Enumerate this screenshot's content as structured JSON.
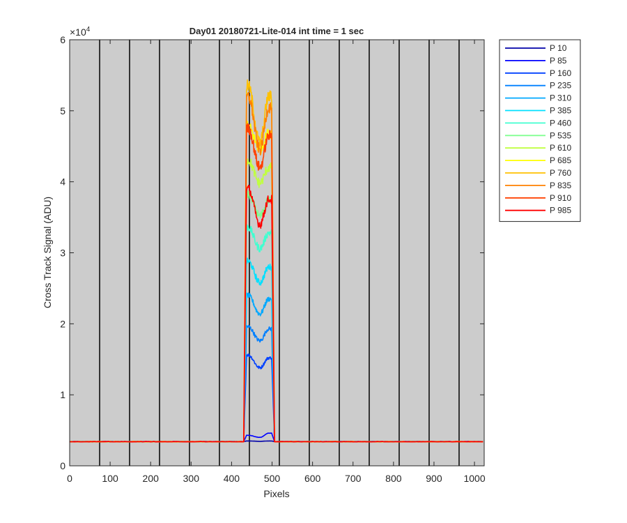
{
  "chart_data": {
    "type": "line",
    "title": "Day01 20180721-Lite-014 int time = 1 sec",
    "xlabel": "Pixels",
    "ylabel": "Cross Track Signal (ADU)",
    "xlim": [
      0,
      1024
    ],
    "ylim": [
      0,
      60000
    ],
    "y_exponent_label": "×10",
    "y_exponent_power": "4",
    "xticks": [
      0,
      100,
      200,
      300,
      400,
      500,
      600,
      700,
      800,
      900,
      1000
    ],
    "xtick_labels": [
      "0",
      "100",
      "200",
      "300",
      "400",
      "500",
      "600",
      "700",
      "800",
      "900",
      "1000"
    ],
    "yticks": [
      0,
      10000,
      20000,
      30000,
      40000,
      50000,
      60000
    ],
    "ytick_labels": [
      "0",
      "1",
      "2",
      "3",
      "4",
      "5",
      "6"
    ],
    "grid": false,
    "background_color": "#cccccc",
    "vertical_lines_x": [
      74,
      148,
      222,
      296,
      370,
      444,
      518,
      592,
      666,
      740,
      814,
      888,
      962
    ],
    "vertical_line_color": "#000000",
    "baseline": 3400,
    "legend_placement": "outside-right",
    "series": [
      {
        "name": "P 10",
        "color": "#0000a8",
        "left_peak": 3500,
        "right_peak": 3500,
        "dip": 3450
      },
      {
        "name": "P 85",
        "color": "#0000ff",
        "left_peak": 4300,
        "right_peak": 4600,
        "dip": 4000
      },
      {
        "name": "P 160",
        "color": "#0040ff",
        "left_peak": 15600,
        "right_peak": 15200,
        "dip": 13800
      },
      {
        "name": "P 235",
        "color": "#0080ff",
        "left_peak": 19600,
        "right_peak": 19300,
        "dip": 17600
      },
      {
        "name": "P 310",
        "color": "#00a8ff",
        "left_peak": 24000,
        "right_peak": 23500,
        "dip": 21400
      },
      {
        "name": "P 385",
        "color": "#00e0ff",
        "left_peak": 28800,
        "right_peak": 28000,
        "dip": 25800
      },
      {
        "name": "P 460",
        "color": "#40ffd0",
        "left_peak": 33600,
        "right_peak": 32800,
        "dip": 30600
      },
      {
        "name": "P 535",
        "color": "#80ff90",
        "left_peak": 38300,
        "right_peak": 37500,
        "dip": 35200
      },
      {
        "name": "P 610",
        "color": "#c0ff40",
        "left_peak": 43000,
        "right_peak": 42000,
        "dip": 39800
      },
      {
        "name": "P 685",
        "color": "#ffff00",
        "left_peak": 47800,
        "right_peak": 46800,
        "dip": 44600
      },
      {
        "name": "P 760",
        "color": "#ffc000",
        "left_peak": 53500,
        "right_peak": 52000,
        "dip": 45500
      },
      {
        "name": "P 835",
        "color": "#ff8000",
        "left_peak": 52000,
        "right_peak": 50500,
        "dip": 44500
      },
      {
        "name": "P 910",
        "color": "#ff4000",
        "left_peak": 47500,
        "right_peak": 46500,
        "dip": 42000
      },
      {
        "name": "P 985",
        "color": "#ff0000",
        "left_peak": 39000,
        "right_peak": 37500,
        "dip": 34000
      }
    ]
  }
}
